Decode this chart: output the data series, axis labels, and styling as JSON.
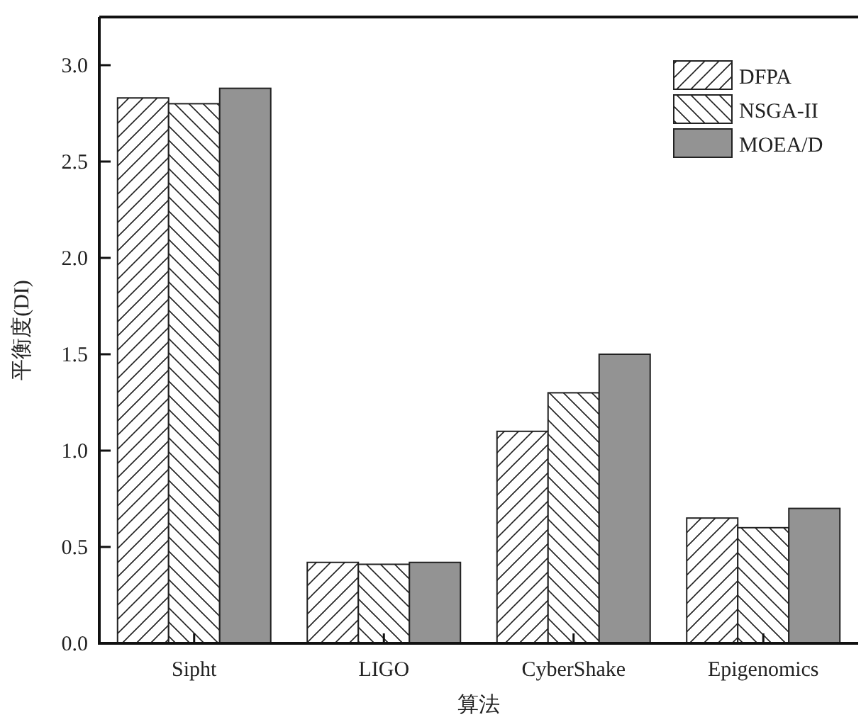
{
  "chart_data": {
    "type": "bar",
    "xlabel": "算法",
    "ylabel": "平衡度(DI)",
    "categories": [
      "Sipht",
      "LIGO",
      "CyberShake",
      "Epigenomics"
    ],
    "series": [
      {
        "name": "DFPA",
        "color": "#222222",
        "values": [
          2.83,
          0.42,
          1.1,
          0.65
        ]
      },
      {
        "name": "NSGA-II",
        "color": "#222222",
        "values": [
          2.8,
          0.41,
          1.3,
          0.6
        ]
      },
      {
        "name": "MOEA/D",
        "color": "#939393",
        "values": [
          2.88,
          0.42,
          1.5,
          0.7
        ]
      }
    ],
    "ylim": [
      0,
      3.25
    ],
    "yticks": [
      {
        "value": 0,
        "label": "0.0"
      },
      {
        "value": 0.5,
        "label": "0.5"
      },
      {
        "value": 1,
        "label": "1.0"
      },
      {
        "value": 1.5,
        "label": "1.5"
      },
      {
        "value": 2,
        "label": "2.0"
      },
      {
        "value": 2.5,
        "label": "2.5"
      },
      {
        "value": 3,
        "label": "3.0"
      }
    ],
    "grid": false,
    "legend": "top right"
  }
}
